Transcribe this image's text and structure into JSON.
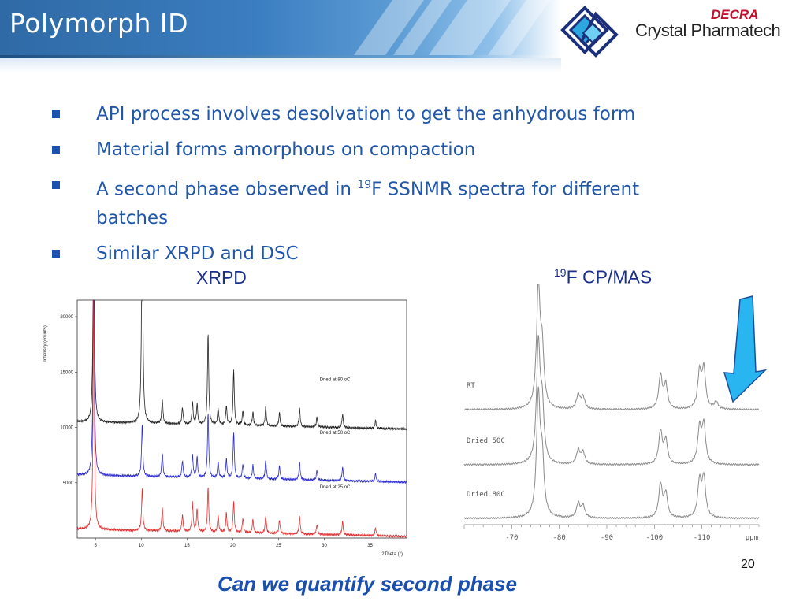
{
  "header": {
    "title": "Polymorph ID",
    "logo": {
      "tag": "DECRA",
      "name": "Crystal Pharmatech"
    }
  },
  "bullets": [
    {
      "text": "API process involves desolvation to get the anhydrous form"
    },
    {
      "text": "Material forms amorphous on compaction"
    },
    {
      "pre": "A second phase observed in ",
      "sup": "19",
      "post": "F SSNMR spectra for different batches"
    },
    {
      "text": "Similar XRPD and DSC"
    }
  ],
  "labels": {
    "xrpd": "XRPD",
    "nmr_sup": "19",
    "nmr_rest": "F CP/MAS"
  },
  "chart_data": [
    {
      "type": "line",
      "name": "XRPD",
      "ylabel": "Intensity (counts)",
      "xlabel": "2Theta (°)",
      "xlim": [
        3,
        39
      ],
      "ylim": [
        0,
        21500
      ],
      "y_ticks": [
        5000,
        10000,
        15000,
        20000
      ],
      "x_ticks": [
        5,
        10,
        15,
        20,
        25,
        30,
        35
      ],
      "series": [
        {
          "name": "Dried at 80 oC",
          "color": "#222222",
          "baseline": 10500,
          "peaks": [
            [
              4.8,
              21500
            ],
            [
              10.1,
              21500
            ],
            [
              12.3,
              2200
            ],
            [
              14.5,
              1500
            ],
            [
              15.6,
              2000
            ],
            [
              16.1,
              1800
            ],
            [
              17.3,
              8200
            ],
            [
              18.4,
              1500
            ],
            [
              19.3,
              1700
            ],
            [
              20.1,
              5000
            ],
            [
              21.1,
              1300
            ],
            [
              22.2,
              1200
            ],
            [
              23.6,
              1700
            ],
            [
              25.1,
              1200
            ],
            [
              27.3,
              1600
            ],
            [
              29.2,
              900
            ],
            [
              32.0,
              1200
            ],
            [
              35.6,
              700
            ]
          ]
        },
        {
          "name": "Dried at 50 oC",
          "color": "#2a2ad0",
          "baseline": 5700,
          "peaks": [
            [
              4.8,
              21500
            ],
            [
              10.1,
              4800
            ],
            [
              12.3,
              2200
            ],
            [
              14.5,
              1500
            ],
            [
              15.6,
              2000
            ],
            [
              16.1,
              1800
            ],
            [
              17.3,
              5800
            ],
            [
              18.4,
              1500
            ],
            [
              19.3,
              1700
            ],
            [
              20.1,
              4200
            ],
            [
              21.1,
              1300
            ],
            [
              22.2,
              1200
            ],
            [
              23.6,
              1700
            ],
            [
              25.1,
              1200
            ],
            [
              27.3,
              1600
            ],
            [
              29.2,
              900
            ],
            [
              32.0,
              1200
            ],
            [
              35.6,
              700
            ]
          ]
        },
        {
          "name": "Dried at 25 oC",
          "color": "#e03030",
          "baseline": 800,
          "peaks": [
            [
              4.8,
              21500
            ],
            [
              10.1,
              3800
            ],
            [
              12.3,
              2100
            ],
            [
              14.5,
              1500
            ],
            [
              15.6,
              2600
            ],
            [
              16.1,
              2000
            ],
            [
              17.3,
              4000
            ],
            [
              18.4,
              1500
            ],
            [
              19.3,
              1700
            ],
            [
              20.1,
              2800
            ],
            [
              21.1,
              1300
            ],
            [
              22.2,
              1200
            ],
            [
              23.6,
              1600
            ],
            [
              25.1,
              1200
            ],
            [
              27.3,
              1600
            ],
            [
              29.2,
              900
            ],
            [
              32.0,
              1200
            ],
            [
              35.6,
              700
            ]
          ]
        }
      ]
    },
    {
      "type": "line",
      "name": "19F CP/MAS",
      "xlabel": "ppm",
      "x_ticks": [
        -70,
        -80,
        -90,
        -100,
        -110
      ],
      "x_reversed": true,
      "xlim": [
        -60,
        -122
      ],
      "series": [
        {
          "name": "RT",
          "color": "#8a8a8a",
          "peaks": [
            [
              -75.6,
              1.0
            ],
            [
              -76.4,
              0.45
            ],
            [
              -84.0,
              0.12
            ],
            [
              -85.0,
              0.1
            ],
            [
              -101.3,
              0.28
            ],
            [
              -102.4,
              0.2
            ],
            [
              -109.5,
              0.3
            ],
            [
              -110.4,
              0.33
            ],
            [
              -113.0,
              0.06
            ]
          ]
        },
        {
          "name": "Dried 50C",
          "color": "#8a8a8a",
          "peaks": [
            [
              -75.6,
              1.0
            ],
            [
              -76.4,
              0.45
            ],
            [
              -84.0,
              0.12
            ],
            [
              -85.0,
              0.1
            ],
            [
              -101.3,
              0.28
            ],
            [
              -102.4,
              0.2
            ],
            [
              -109.5,
              0.3
            ],
            [
              -110.4,
              0.33
            ]
          ]
        },
        {
          "name": "Dried 80C",
          "color": "#8a8a8a",
          "peaks": [
            [
              -75.6,
              1.0
            ],
            [
              -76.4,
              0.45
            ],
            [
              -84.0,
              0.12
            ],
            [
              -85.0,
              0.1
            ],
            [
              -101.3,
              0.28
            ],
            [
              -102.4,
              0.2
            ],
            [
              -109.5,
              0.3
            ],
            [
              -110.4,
              0.33
            ]
          ]
        }
      ]
    }
  ],
  "footer": {
    "page": "20",
    "question": "Can we quantify second phase"
  },
  "colors": {
    "text": "#2157a8",
    "arrow": "#29b6f0",
    "accent": "#c0112d"
  }
}
